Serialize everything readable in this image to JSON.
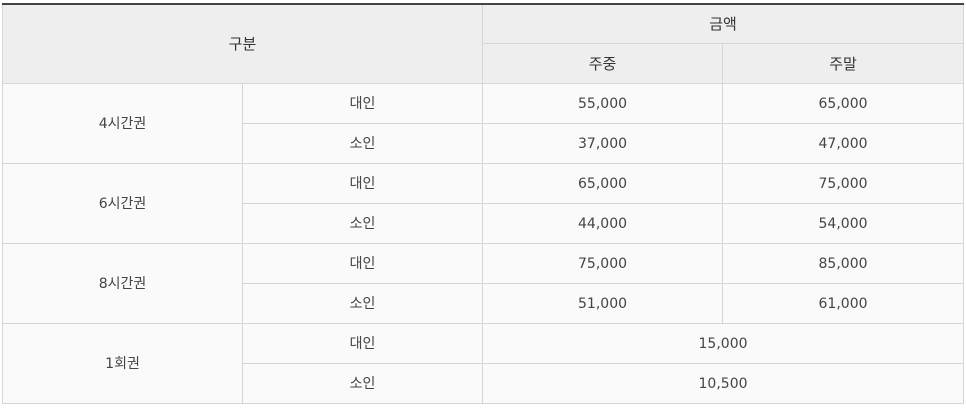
{
  "header": {
    "category": "구분",
    "amount": "금액",
    "weekday": "주중",
    "weekend": "주말"
  },
  "groups": [
    {
      "label": "4시간권",
      "rows": [
        {
          "type": "대인",
          "weekday": "55,000",
          "weekend": "65,000"
        },
        {
          "type": "소인",
          "weekday": "37,000",
          "weekend": "47,000"
        }
      ]
    },
    {
      "label": "6시간권",
      "rows": [
        {
          "type": "대인",
          "weekday": "65,000",
          "weekend": "75,000"
        },
        {
          "type": "소인",
          "weekday": "44,000",
          "weekend": "54,000"
        }
      ]
    },
    {
      "label": "8시간권",
      "rows": [
        {
          "type": "대인",
          "weekday": "75,000",
          "weekend": "85,000"
        },
        {
          "type": "소인",
          "weekday": "51,000",
          "weekend": "61,000"
        }
      ]
    },
    {
      "label": "1회권",
      "rows": [
        {
          "type": "대인",
          "price": "15,000"
        },
        {
          "type": "소인",
          "price": "10,500"
        }
      ]
    }
  ]
}
